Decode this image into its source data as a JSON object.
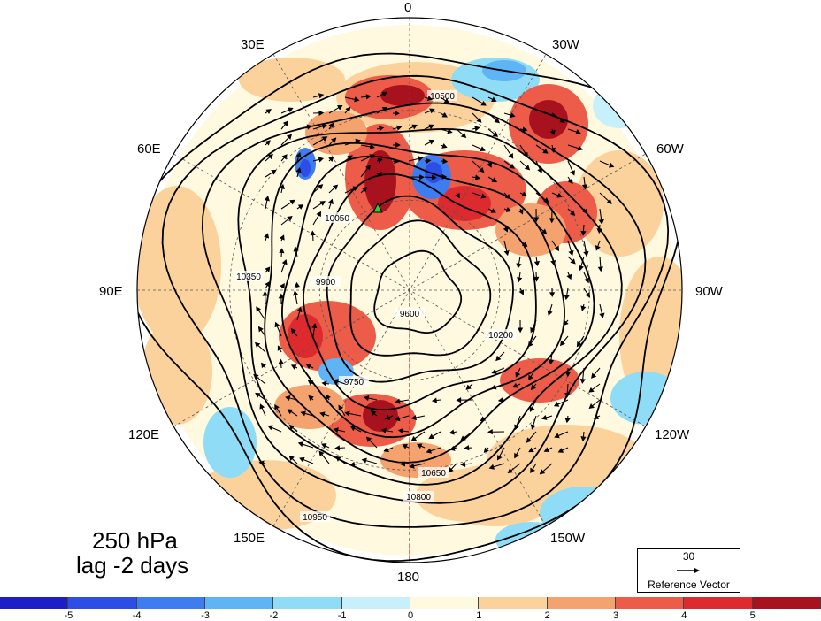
{
  "figure": {
    "level": "250 hPa",
    "lag": "lag -2 days"
  },
  "lon_labels": {
    "top": "0",
    "bottom": "180",
    "left": "90E",
    "right": "90W",
    "upper_left_30": "30E",
    "upper_left_60": "60E",
    "upper_right_30": "30W",
    "upper_right_60": "60W",
    "lower_left_120": "120E",
    "lower_left_150": "150E",
    "lower_right_120": "120W",
    "lower_right_150": "150W"
  },
  "contour_labels": [
    "9600",
    "9750",
    "9900",
    "10050",
    "10200",
    "10350",
    "10500",
    "10650",
    "10800",
    "10950"
  ],
  "reference_vector": {
    "magnitude": "30",
    "caption": "Reference Vector"
  },
  "colorbar": {
    "colors": [
      "#1e1ec8",
      "#2c4ee6",
      "#3d7df0",
      "#5fb4f5",
      "#8edcf6",
      "#c8f0fb",
      "#fff9e0",
      "#fbd29b",
      "#f5a36e",
      "#ec5c48",
      "#dd2a2e",
      "#a8111e"
    ],
    "tick_labels": [
      "-5",
      "-4",
      "-3",
      "-2",
      "-1",
      "0",
      "1",
      "2",
      "3",
      "4",
      "5"
    ]
  },
  "colors": {
    "marker": "#33cc33",
    "meridian_180": "#a0283c"
  }
}
